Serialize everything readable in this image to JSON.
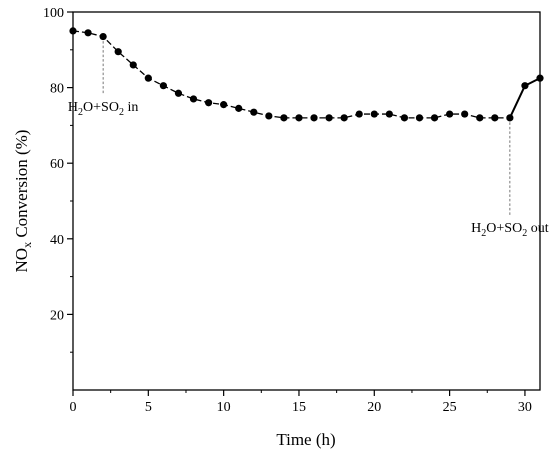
{
  "chart_data": {
    "type": "line",
    "xlabel": "Time (h)",
    "ylabel": {
      "main": "NO",
      "sub": "x",
      "rest": " Conversion (%)"
    },
    "xlim": [
      0,
      31
    ],
    "ylim": [
      0,
      100
    ],
    "x_ticks": [
      0,
      5,
      10,
      15,
      20,
      25,
      30
    ],
    "y_ticks": [
      20,
      40,
      60,
      80,
      100
    ],
    "grid": false,
    "series": [
      {
        "x": [
          0,
          1,
          2,
          3,
          4,
          5,
          6,
          7,
          8,
          9,
          10,
          11,
          12,
          13,
          14,
          15,
          16,
          17,
          18,
          19,
          20,
          21,
          22,
          23,
          24,
          25,
          26,
          27,
          28,
          29,
          30,
          31
        ],
        "y": [
          95,
          94.5,
          93.5,
          89.5,
          86,
          82.5,
          80.5,
          78.5,
          77,
          76,
          75.5,
          74.5,
          73.5,
          72.5,
          72,
          72,
          72,
          72,
          72,
          73,
          73,
          73,
          72,
          72,
          72,
          73,
          73,
          72,
          72,
          72,
          80.5,
          82.5
        ]
      }
    ],
    "annotations": [
      {
        "id": "in",
        "x": 2,
        "y_from": 93.5,
        "y_to": 78,
        "parts": [
          {
            "t": "H"
          },
          {
            "t": "2",
            "sub": true
          },
          {
            "t": "O+SO"
          },
          {
            "t": "2",
            "sub": true
          },
          {
            "t": " in"
          }
        ]
      },
      {
        "id": "out",
        "x": 29,
        "y_from": 72,
        "y_to": 46,
        "parts": [
          {
            "t": "H"
          },
          {
            "t": "2",
            "sub": true
          },
          {
            "t": "O+SO"
          },
          {
            "t": "2",
            "sub": true
          },
          {
            "t": " out"
          }
        ]
      }
    ]
  }
}
